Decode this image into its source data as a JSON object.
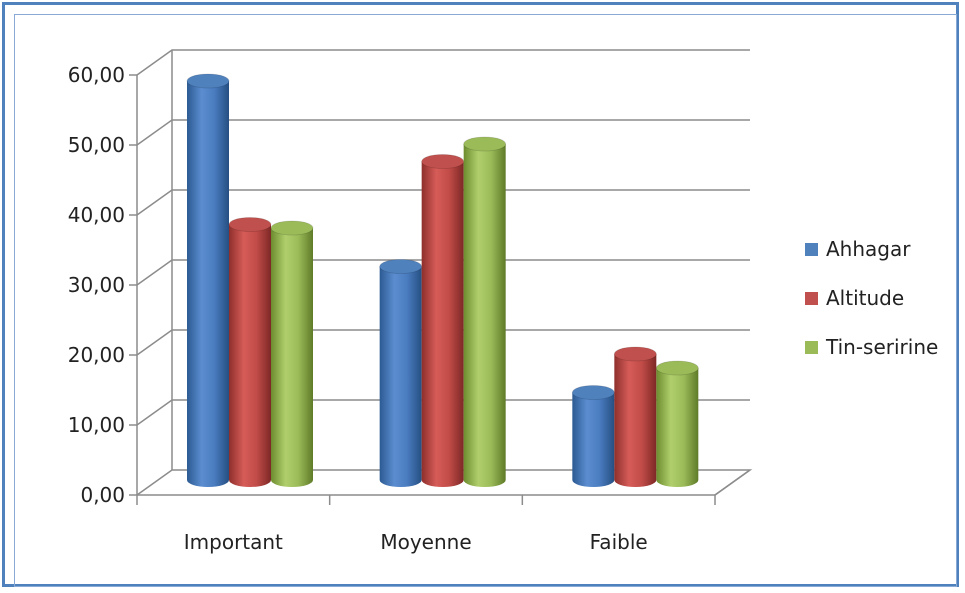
{
  "chart_data": {
    "type": "bar",
    "categories": [
      "Important",
      "Moyenne",
      "Faible"
    ],
    "series": [
      {
        "name": "Ahhagar",
        "values": [
          57.0,
          30.5,
          12.5
        ],
        "color": "#4f81bd"
      },
      {
        "name": "Altitude",
        "values": [
          36.5,
          45.5,
          18.0
        ],
        "color": "#c0504d"
      },
      {
        "name": "Tin-seririne",
        "values": [
          36.0,
          48.0,
          16.0
        ],
        "color": "#9bbb59"
      }
    ],
    "yticks": [
      "0,00",
      "10,00",
      "20,00",
      "30,00",
      "40,00",
      "50,00",
      "60,00"
    ],
    "ylim": [
      0,
      60
    ],
    "grid": true,
    "legend": "right",
    "title": "",
    "xlabel": "",
    "ylabel": ""
  }
}
